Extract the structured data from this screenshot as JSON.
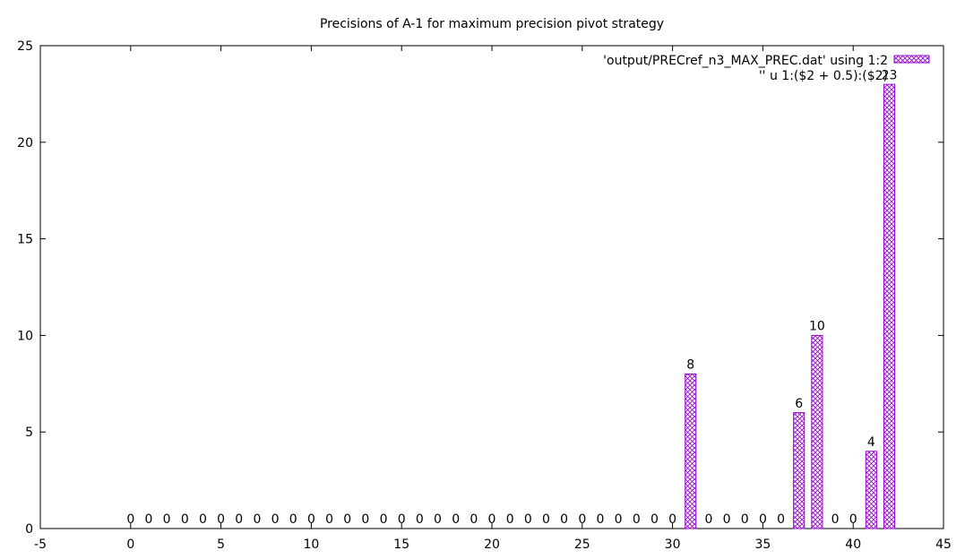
{
  "chart_data": {
    "type": "bar",
    "title": "Precisions of A-1 for maximum precision pivot strategy",
    "xlabel": "",
    "ylabel": "",
    "xlim": [
      -5,
      45
    ],
    "ylim": [
      0,
      25
    ],
    "x_ticks": [
      -5,
      0,
      5,
      10,
      15,
      20,
      25,
      30,
      35,
      40,
      45
    ],
    "y_ticks": [
      0,
      5,
      10,
      15,
      20,
      25
    ],
    "grid": false,
    "legend_position": "top-right",
    "legend": [
      "'output/PRECref_n3_MAX_PREC.dat' using 1:2",
      "'' u 1:($2 + 0.5):($2)"
    ],
    "bar_color": "#9400d3",
    "bar_pattern": "crosshatch",
    "x": [
      0,
      1,
      2,
      3,
      4,
      5,
      6,
      7,
      8,
      9,
      10,
      11,
      12,
      13,
      14,
      15,
      16,
      17,
      18,
      19,
      20,
      21,
      22,
      23,
      24,
      25,
      26,
      27,
      28,
      29,
      30,
      31,
      32,
      33,
      34,
      35,
      36,
      37,
      38,
      39,
      40,
      41,
      42
    ],
    "values": [
      0,
      0,
      0,
      0,
      0,
      0,
      0,
      0,
      0,
      0,
      0,
      0,
      0,
      0,
      0,
      0,
      0,
      0,
      0,
      0,
      0,
      0,
      0,
      0,
      0,
      0,
      0,
      0,
      0,
      0,
      0,
      8,
      0,
      0,
      0,
      0,
      0,
      6,
      10,
      0,
      0,
      4,
      23
    ]
  }
}
